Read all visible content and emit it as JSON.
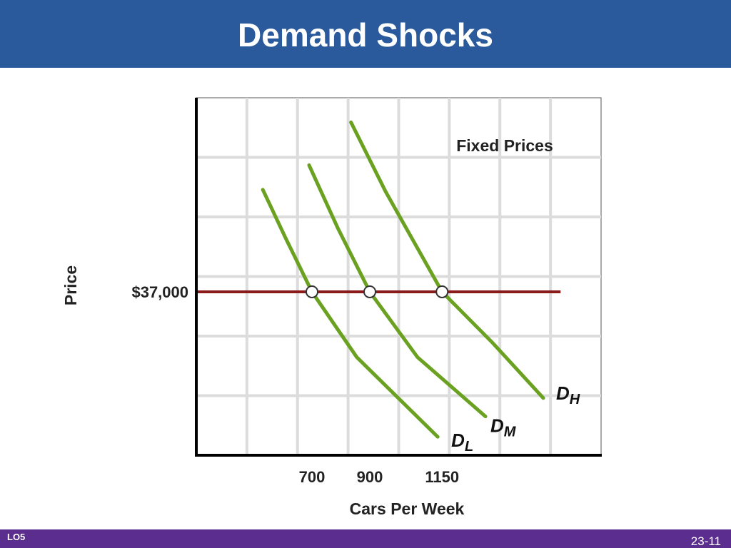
{
  "header": {
    "title": "Demand Shocks"
  },
  "footer": {
    "left": "LO5",
    "right": "23-11"
  },
  "chart_data": {
    "type": "line",
    "annotation": "Fixed Prices",
    "xlabel": "Cars Per Week",
    "ylabel": "Price",
    "xlim": [
      300,
      1700
    ],
    "ylim": [
      29000,
      46500
    ],
    "xticks": [
      700,
      900,
      1150
    ],
    "yticks": [
      {
        "value": 37000,
        "label": "$37,000"
      }
    ],
    "grid": true,
    "series": [
      {
        "name": "D",
        "subscript": "L",
        "color": "#6aa121",
        "x": [
          530,
          610,
          700,
          855,
          1135
        ],
        "values": [
          42000,
          39600,
          37000,
          33800,
          29900
        ]
      },
      {
        "name": "D",
        "subscript": "M",
        "color": "#6aa121",
        "x": [
          690,
          790,
          900,
          1065,
          1300
        ],
        "values": [
          43200,
          40100,
          37000,
          33800,
          30900
        ]
      },
      {
        "name": "D",
        "subscript": "H",
        "color": "#6aa121",
        "x": [
          835,
          955,
          1150,
          1325,
          1500
        ],
        "values": [
          45300,
          41900,
          37000,
          34500,
          31800
        ]
      }
    ],
    "price_line": {
      "color": "#8b1a1a",
      "x": [
        300,
        1560
      ],
      "values": [
        37000,
        37000
      ]
    },
    "intersections": {
      "x": [
        700,
        900,
        1150
      ],
      "values": [
        37000,
        37000,
        37000
      ]
    }
  }
}
